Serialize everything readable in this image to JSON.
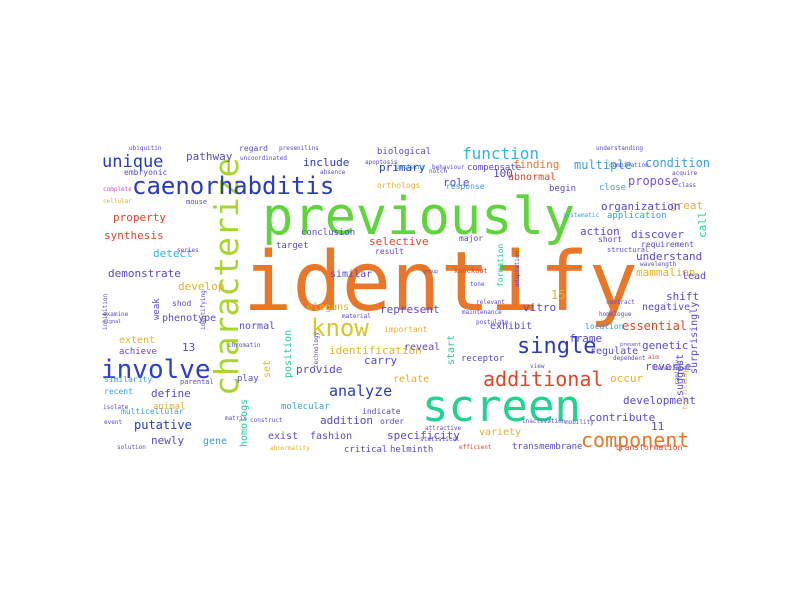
{
  "palette": {
    "orange": "#e8772a",
    "green": "#5fd53c",
    "teal": "#1ed48f",
    "blue": "#2c3fd2",
    "navy": "#2a3bb8",
    "purple": "#7e4fd6",
    "violet": "#5a4bc9",
    "lime": "#a8d62c",
    "yellow": "#d6c82a",
    "red": "#e0452a",
    "cyan": "#2cb7e8",
    "sky": "#3a9ee0",
    "gold": "#e3b12c",
    "pink": "#e04ab8",
    "sea": "#2cc7a4"
  },
  "words": [
    {
      "t": "identify",
      "c": "orange"
    },
    {
      "t": "previously",
      "c": "green"
    },
    {
      "t": "screen",
      "c": "teal"
    },
    {
      "t": "characterize",
      "c": "lime"
    },
    {
      "t": "caenorhabditis",
      "c": "navy"
    },
    {
      "t": "involve",
      "c": "blue"
    },
    {
      "t": "know",
      "c": "yellow"
    },
    {
      "t": "single",
      "c": "navy"
    },
    {
      "t": "additional",
      "c": "red"
    },
    {
      "t": "component",
      "c": "orange"
    },
    {
      "t": "function",
      "c": "cyan"
    },
    {
      "t": "unique",
      "c": "navy"
    },
    {
      "t": "analyze",
      "c": "navy"
    },
    {
      "t": "multiple",
      "c": "sky"
    },
    {
      "t": "condition",
      "c": "sky"
    },
    {
      "t": "propose",
      "c": "purple"
    },
    {
      "t": "finding",
      "c": "orange"
    },
    {
      "t": "primary",
      "c": "navy"
    },
    {
      "t": "include",
      "c": "navy"
    },
    {
      "t": "pathway",
      "c": "violet"
    },
    {
      "t": "property",
      "c": "red"
    },
    {
      "t": "synthesis",
      "c": "red"
    },
    {
      "t": "detect",
      "c": "cyan"
    },
    {
      "t": "demonstrate",
      "c": "violet"
    },
    {
      "t": "develop",
      "c": "gold"
    },
    {
      "t": "phenotype",
      "c": "violet"
    },
    {
      "t": "normal",
      "c": "violet"
    },
    {
      "t": "extent",
      "c": "gold"
    },
    {
      "t": "define",
      "c": "violet"
    },
    {
      "t": "putative",
      "c": "navy"
    },
    {
      "t": "newly",
      "c": "violet"
    },
    {
      "t": "gene",
      "c": "sky"
    },
    {
      "t": "achieve",
      "c": "violet"
    },
    {
      "t": "animal",
      "c": "gold"
    },
    {
      "t": "multicellular",
      "c": "sky"
    },
    {
      "t": "identification",
      "c": "gold"
    },
    {
      "t": "represent",
      "c": "violet"
    },
    {
      "t": "selective",
      "c": "red"
    },
    {
      "t": "elegans",
      "c": "gold"
    },
    {
      "t": "conclusion",
      "c": "violet"
    },
    {
      "t": "target",
      "c": "violet"
    },
    {
      "t": "provide",
      "c": "violet"
    },
    {
      "t": "carry",
      "c": "violet"
    },
    {
      "t": "reveal",
      "c": "violet"
    },
    {
      "t": "relate",
      "c": "gold"
    },
    {
      "t": "addition",
      "c": "violet"
    },
    {
      "t": "exist",
      "c": "violet"
    },
    {
      "t": "fashion",
      "c": "violet"
    },
    {
      "t": "specificity",
      "c": "violet"
    },
    {
      "t": "variety",
      "c": "gold"
    },
    {
      "t": "critical",
      "c": "violet"
    },
    {
      "t": "helminth",
      "c": "violet"
    },
    {
      "t": "transmembrane",
      "c": "violet"
    },
    {
      "t": "contribute",
      "c": "violet"
    },
    {
      "t": "development",
      "c": "violet"
    },
    {
      "t": "occur",
      "c": "gold"
    },
    {
      "t": "reverse",
      "c": "violet"
    },
    {
      "t": "regulate",
      "c": "violet"
    },
    {
      "t": "frame",
      "c": "violet"
    },
    {
      "t": "genetic",
      "c": "violet"
    },
    {
      "t": "essential",
      "c": "red"
    },
    {
      "t": "exhibit",
      "c": "violet"
    },
    {
      "t": "vitro",
      "c": "violet"
    },
    {
      "t": "mammalian",
      "c": "gold"
    },
    {
      "t": "lead",
      "c": "violet"
    },
    {
      "t": "shift",
      "c": "violet"
    },
    {
      "t": "negative",
      "c": "violet"
    },
    {
      "t": "understand",
      "c": "violet"
    },
    {
      "t": "great",
      "c": "gold"
    },
    {
      "t": "discover",
      "c": "violet"
    },
    {
      "t": "action",
      "c": "violet"
    },
    {
      "t": "organization",
      "c": "violet"
    },
    {
      "t": "application",
      "c": "sky"
    },
    {
      "t": "abnormal",
      "c": "red"
    },
    {
      "t": "role",
      "c": "violet"
    },
    {
      "t": "begin",
      "c": "violet"
    },
    {
      "t": "close",
      "c": "sky"
    },
    {
      "t": "compensate",
      "c": "violet"
    },
    {
      "t": "biological",
      "c": "violet"
    },
    {
      "t": "embryonic",
      "c": "violet"
    },
    {
      "t": "regard",
      "c": "violet"
    },
    {
      "t": "similar",
      "c": "violet"
    },
    {
      "t": "call",
      "c": "teal"
    },
    {
      "t": "suggest",
      "c": "violet"
    },
    {
      "t": "surprisingly",
      "c": "violet"
    },
    {
      "t": "homologs",
      "c": "sea"
    },
    {
      "t": "position",
      "c": "sea"
    },
    {
      "t": "set",
      "c": "gold"
    },
    {
      "t": "start",
      "c": "sea"
    },
    {
      "t": "molecular",
      "c": "sky"
    },
    {
      "t": "indicate",
      "c": "violet"
    },
    {
      "t": "order",
      "c": "violet"
    },
    {
      "t": "weak",
      "c": "violet"
    },
    {
      "t": "shod",
      "c": "violet"
    },
    {
      "t": "response",
      "c": "sky"
    },
    {
      "t": "orthologs",
      "c": "gold"
    },
    {
      "t": "receptor",
      "c": "violet"
    },
    {
      "t": "location",
      "c": "sky"
    },
    {
      "t": "important",
      "c": "gold"
    },
    {
      "t": "similarity",
      "c": "sky"
    },
    {
      "t": "play",
      "c": "violet"
    },
    {
      "t": "major",
      "c": "violet"
    },
    {
      "t": "result",
      "c": "violet"
    },
    {
      "t": "knockout",
      "c": "red"
    },
    {
      "t": "short",
      "c": "violet"
    },
    {
      "t": "requirement",
      "c": "violet"
    },
    {
      "t": "structural",
      "c": "violet"
    },
    {
      "t": "systematic",
      "c": "sky"
    },
    {
      "t": "wavelength",
      "c": "violet"
    },
    {
      "t": "behavioral",
      "c": "violet"
    },
    {
      "t": "recent",
      "c": "sky"
    },
    {
      "t": "parental",
      "c": "violet"
    },
    {
      "t": "ubiquitin",
      "c": "violet"
    },
    {
      "t": "presenilins",
      "c": "violet"
    },
    {
      "t": "uncoordinated",
      "c": "violet"
    },
    {
      "t": "understanding",
      "c": "violet"
    },
    {
      "t": "homologue",
      "c": "violet"
    },
    {
      "t": "contract",
      "c": "violet"
    },
    {
      "t": "postulate",
      "c": "violet"
    },
    {
      "t": "maintenance",
      "c": "violet"
    },
    {
      "t": "relevant",
      "c": "violet"
    },
    {
      "t": "inactivation",
      "c": "violet"
    },
    {
      "t": "mobility",
      "c": "violet"
    },
    {
      "t": "statistical",
      "c": "violet"
    },
    {
      "t": "efficient",
      "c": "red"
    },
    {
      "t": "transformation",
      "c": "red"
    },
    {
      "t": "trafficking",
      "c": "gold"
    },
    {
      "t": "rapidly",
      "c": "violet"
    },
    {
      "t": "combination",
      "c": "violet"
    },
    {
      "t": "acquire",
      "c": "violet"
    },
    {
      "t": "class",
      "c": "violet"
    },
    {
      "t": "dependent",
      "c": "violet"
    },
    {
      "t": "technology",
      "c": "violet"
    },
    {
      "t": "attractive",
      "c": "violet"
    },
    {
      "t": "proteins",
      "c": "sky"
    },
    {
      "t": "behaviour",
      "c": "violet"
    },
    {
      "t": "apoptosis",
      "c": "violet"
    },
    {
      "t": "absence",
      "c": "violet"
    },
    {
      "t": "material",
      "c": "violet"
    },
    {
      "t": "chromatin",
      "c": "violet"
    },
    {
      "t": "construct",
      "c": "violet"
    },
    {
      "t": "abnormality",
      "c": "gold"
    },
    {
      "t": "solution",
      "c": "violet"
    },
    {
      "t": "isolate",
      "c": "violet"
    },
    {
      "t": "event",
      "c": "violet"
    },
    {
      "t": "matrix",
      "c": "violet"
    },
    {
      "t": "inhibition",
      "c": "violet"
    },
    {
      "t": "cellular",
      "c": "gold"
    },
    {
      "t": "complete",
      "c": "pink"
    },
    {
      "t": "mouse",
      "c": "violet"
    },
    {
      "t": "examine",
      "c": "violet"
    },
    {
      "t": "series",
      "c": "violet"
    },
    {
      "t": "identifying",
      "c": "violet"
    },
    {
      "t": "signal",
      "c": "violet"
    },
    {
      "t": "view",
      "c": "violet"
    },
    {
      "t": "tone",
      "c": "violet"
    },
    {
      "t": "formation",
      "c": "teal"
    },
    {
      "t": "adaptation",
      "c": "violet"
    },
    {
      "t": "group",
      "c": "violet"
    },
    {
      "t": "notch",
      "c": "violet"
    },
    {
      "t": "aim",
      "c": "red"
    },
    {
      "t": "present",
      "c": "violet"
    },
    {
      "t": "100",
      "c": "violet"
    },
    {
      "t": "15",
      "c": "gold"
    },
    {
      "t": "13",
      "c": "violet"
    },
    {
      "t": "11",
      "c": "violet"
    }
  ]
}
